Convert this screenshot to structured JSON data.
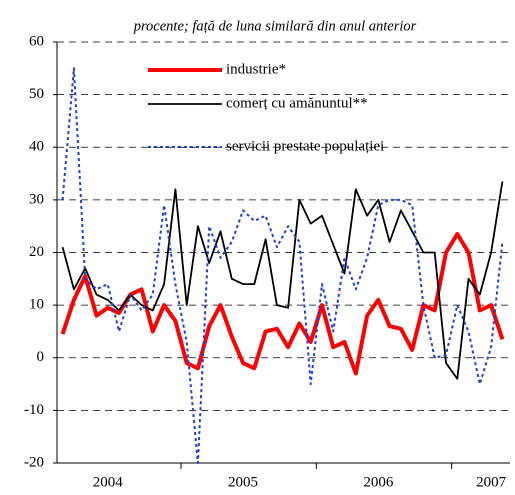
{
  "chart_data": {
    "type": "line",
    "subtitle": "procente; față de luna similară din anul anterior",
    "categories": [
      null,
      null,
      null,
      null,
      "2004",
      null,
      null,
      null,
      null,
      null,
      null,
      null,
      null,
      null,
      null,
      null,
      "2005",
      null,
      null,
      null,
      null,
      null,
      null,
      null,
      null,
      null,
      null,
      null,
      "2006",
      null,
      null,
      null,
      null,
      null,
      null,
      null,
      null,
      null,
      "2007",
      null
    ],
    "series": [
      {
        "name": "industrie*",
        "color": "#ff0000",
        "style": "solid",
        "width": 4,
        "values": [
          4.5,
          11,
          15.5,
          8,
          9.5,
          8.5,
          12,
          13,
          5,
          10,
          7,
          -1,
          -2,
          6,
          10,
          4,
          -1,
          -2,
          5,
          5.5,
          2,
          6.5,
          3,
          10,
          2,
          3,
          -3,
          8,
          11,
          6,
          5.5,
          1.5,
          10,
          9,
          20,
          23.5,
          20,
          9,
          10,
          3.5
        ]
      },
      {
        "name": "comerț cu amănuntul**",
        "color": "#000000",
        "style": "solid",
        "width": 1.8,
        "values": [
          21,
          13,
          17,
          12,
          11,
          9,
          12,
          10,
          9,
          14,
          32,
          10,
          25,
          18,
          24,
          15,
          14,
          14,
          22.5,
          10,
          9.5,
          30,
          25.5,
          27,
          21.5,
          16,
          32,
          27,
          30,
          22,
          28,
          24,
          20,
          20,
          -1,
          -4,
          15,
          12,
          20,
          33.5
        ]
      },
      {
        "name": "servicii prestate populației",
        "color": "#1f3fd0",
        "style": "dotted",
        "width": 2,
        "values": [
          30,
          55,
          15,
          13,
          14,
          5,
          12,
          9,
          12,
          29,
          14,
          3,
          -20,
          25,
          19,
          22,
          28,
          26,
          27,
          21,
          25,
          22,
          -5,
          14,
          5,
          19,
          13,
          19,
          29,
          30,
          30,
          29,
          10,
          0,
          0.5,
          10,
          5,
          -5,
          2,
          22
        ]
      }
    ],
    "ylim": [
      -20,
      60
    ],
    "yticks": [
      -20,
      -10,
      0,
      10,
      20,
      30,
      40,
      50,
      60
    ],
    "grid": true,
    "legend": "top"
  }
}
